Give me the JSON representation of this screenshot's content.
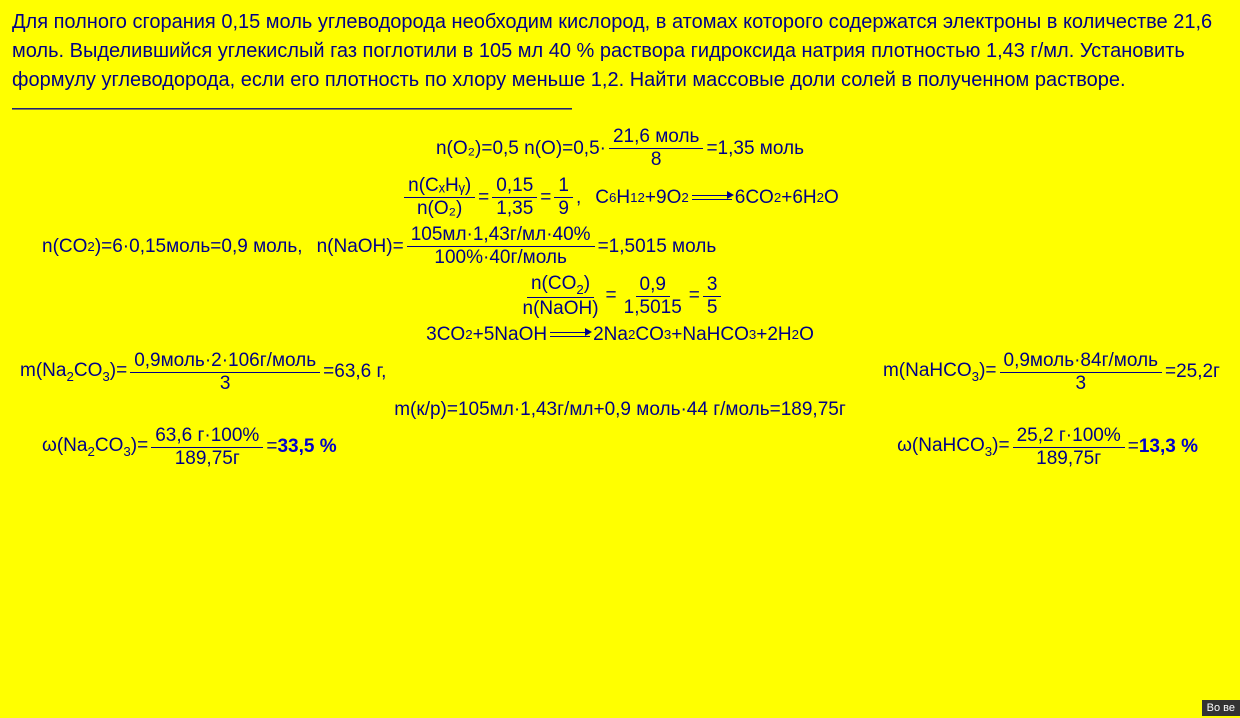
{
  "problem": "Для полного сгорания 0,15 моль углеводорода необходим кислород, в атомах которого содержатся электроны в количестве 21,6 моль. Выделившийся углекислый газ поглотили в 105 мл 40 % раствора гидроксида натрия плотностью 1,43 г/мл. Установить формулу углеводорода, если его плотность по хлору меньше 1,2. Найти массовые доли солей в полученном растворе.",
  "divider": "————————————————————————————",
  "eq1": {
    "lhs": "n(O₂)=0,5 n(O)=0,5·",
    "num": "21,6 моль",
    "den": "8",
    "rhs": "=1,35 моль"
  },
  "eq2a": {
    "num": "n(CₓHᵧ)",
    "den": "n(O₂)",
    "mid": "=",
    "num2": "0,15",
    "den2": "1,35",
    "mid2": "=",
    "num3": "1",
    "den3": "9",
    "comma": ","
  },
  "eq2b": "C₆H₁₂+9O₂⟹6CO₂+6H₂O",
  "eq3a": "n(CO₂)=6·0,15моль=0,9 моль,",
  "eq3b": {
    "lhs": "n(NaOH)=",
    "num": "105мл·1,43г/мл·40%",
    "den": "100%·40г/моль",
    "rhs": "=1,5015 моль"
  },
  "eq4": {
    "num1": "n(CO₂)",
    "den1": "n(NaOH)",
    "mid1": "=",
    "num2": "0,9",
    "den2": "1,5015",
    "mid2": "=",
    "num3": "3",
    "den3": "5"
  },
  "eq5": "3CO₂+5NaOH⟹2Na₂CO₃+NaHCO₃+2H₂O",
  "eq6a": {
    "lhs": "m(Na₂CO₃)=",
    "num": "0,9моль·2·106г/моль",
    "den": "3",
    "rhs": "=63,6 г,"
  },
  "eq6b": {
    "lhs": "m(NaHCO₃)=",
    "num": "0,9моль·84г/моль",
    "den": "3",
    "rhs": "=25,2г"
  },
  "eq7": "m(к/р)=105мл·1,43г/мл+0,9 моль·44 г/моль=189,75г",
  "eq8a": {
    "lhs": "ω(Na₂CO₃)=",
    "num": "63,6 г·100%",
    "den": "189,75г",
    "eq": "=",
    "ans": "33,5 %"
  },
  "eq8b": {
    "lhs": "ω(NaHCO₃)=",
    "num": "25,2 г·100%",
    "den": "189,75г",
    "eq": "=",
    "ans": "13,3 %"
  },
  "tag": "Во ве"
}
